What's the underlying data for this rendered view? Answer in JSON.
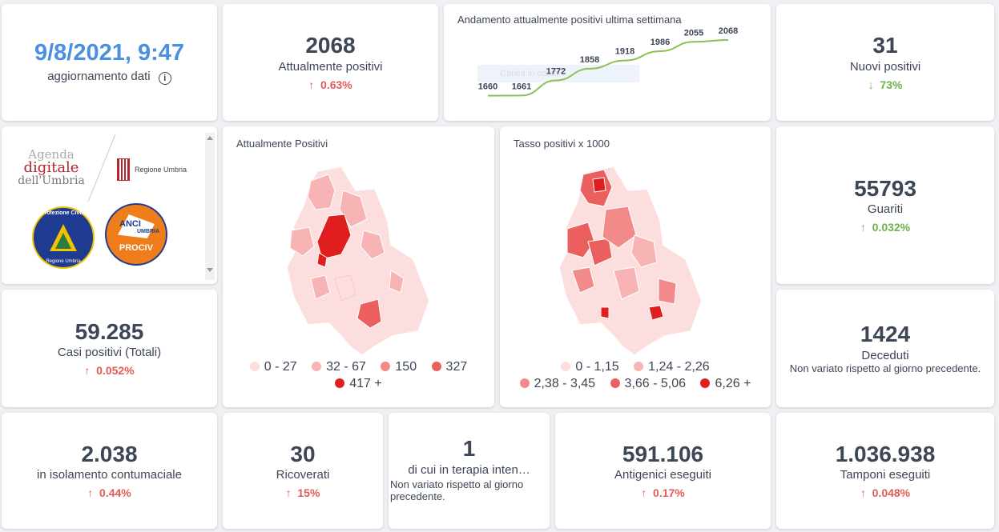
{
  "header": {
    "datetime": "9/8/2021, 9:47",
    "update_label": "aggiornamento dati",
    "info_icon": "info-icon"
  },
  "positives": {
    "value": "2068",
    "label": "Attualmente positivi",
    "delta": "0.63%",
    "arrow": "↑"
  },
  "weekly_chart": {
    "title": "Andamento attualmente positivi ultima settimana",
    "watermark": "Carica in corso"
  },
  "chart_data": {
    "type": "line",
    "title": "Andamento attualmente positivi ultima settimana",
    "x": [
      1,
      2,
      3,
      4,
      5,
      6,
      7,
      8
    ],
    "values": [
      1660,
      1661,
      1772,
      1858,
      1918,
      1986,
      2055,
      2068
    ],
    "labels": [
      "1660",
      "1661",
      "1772",
      "1858",
      "1918",
      "1986",
      "2055",
      "2068"
    ],
    "ylim": [
      1640,
      2080
    ],
    "color": "#8cc152"
  },
  "new_positives": {
    "value": "31",
    "label": "Nuovi positivi",
    "delta": "73%",
    "arrow": "↓"
  },
  "logos": {
    "agenda_line1": "Agenda",
    "agenda_line2": "digitale",
    "agenda_line3": "dell'Umbria",
    "regione": "Regione Umbria",
    "protezione": "Protezione Civile",
    "protezione_sub": "Regione Umbria",
    "anci": "ANCI",
    "anci_umbria": "UMBRIA",
    "prociv": "PROCIV"
  },
  "map_positives": {
    "title": "Attualmente Positivi",
    "legend": [
      {
        "label": "0 - 27",
        "color": "#fcdede"
      },
      {
        "label": "32 - 67",
        "color": "#f8b4b4"
      },
      {
        "label": "150",
        "color": "#f28a8a"
      },
      {
        "label": "327",
        "color": "#eb5f5f"
      },
      {
        "label": "417 +",
        "color": "#e01e1e"
      }
    ]
  },
  "map_rate": {
    "title": "Tasso positivi x 1000",
    "legend": [
      {
        "label": "0 - 1,15",
        "color": "#fcdede"
      },
      {
        "label": "1,24 - 2,26",
        "color": "#f8b4b4"
      },
      {
        "label": "2,38 - 3,45",
        "color": "#f28a8a"
      },
      {
        "label": "3,66 - 5,06",
        "color": "#eb5f5f"
      },
      {
        "label": "6,26 +",
        "color": "#e01e1e"
      }
    ]
  },
  "recovered": {
    "value": "55793",
    "label": "Guariti",
    "delta": "0.032%",
    "arrow": "↑"
  },
  "total_cases": {
    "value": "59.285",
    "label": "Casi positivi (Totali)",
    "delta": "0.052%",
    "arrow": "↑"
  },
  "deaths": {
    "value": "1424",
    "label": "Deceduti",
    "note": "Non variato rispetto al giorno precedente."
  },
  "isolation": {
    "value": "2.038",
    "label": "in isolamento contumaciale",
    "delta": "0.44%",
    "arrow": "↑"
  },
  "hospitalized": {
    "value": "30",
    "label": "Ricoverati",
    "delta": "15%",
    "arrow": "↑"
  },
  "icu": {
    "value": "1",
    "label": "di cui in terapia inten…",
    "note": "Non variato rispetto al giorno precedente."
  },
  "antigen": {
    "value": "591.106",
    "label": "Antigenici eseguiti",
    "delta": "0.17%",
    "arrow": "↑"
  },
  "swabs": {
    "value": "1.036.938",
    "label": "Tamponi eseguiti",
    "delta": "0.048%",
    "arrow": "↑"
  }
}
